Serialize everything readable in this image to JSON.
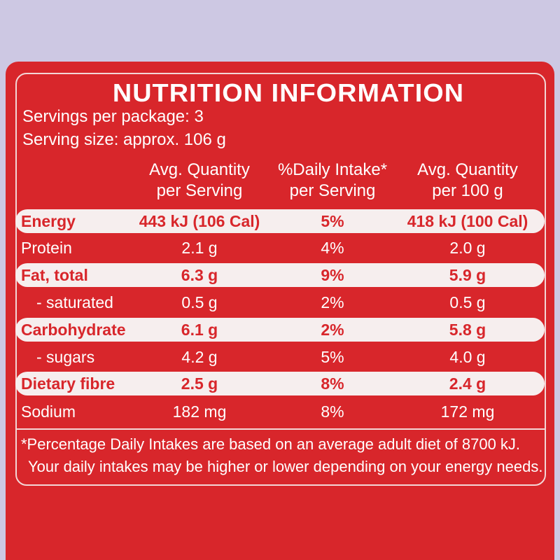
{
  "title": "NUTRITION INFORMATION",
  "servings": [
    "Servings per package: 3",
    "Serving size: approx. 106 g"
  ],
  "header": [
    [
      "Avg. Quantity",
      "per Serving"
    ],
    [
      "%Daily Intake*",
      "per Serving"
    ],
    [
      "Avg. Quantity",
      "per 100 g"
    ]
  ],
  "rows": [
    [
      "Energy",
      "443 kJ (106 Cal)",
      "5%",
      "418 kJ (100 Cal)"
    ],
    [
      "Protein",
      "2.1 g",
      "4%",
      "2.0 g"
    ],
    [
      "Fat, total",
      "6.3 g",
      "9%",
      "5.9 g"
    ],
    [
      "- saturated",
      "0.5 g",
      "2%",
      "0.5 g"
    ],
    [
      "Carbohydrate",
      "6.1 g",
      "2%",
      "5.8 g"
    ],
    [
      "- sugars",
      "4.2 g",
      "5%",
      "4.0 g"
    ],
    [
      "Dietary fibre",
      "2.5 g",
      "8%",
      "2.4 g"
    ],
    [
      "Sodium",
      "182 mg",
      "8%",
      "172 mg"
    ]
  ],
  "footnote": [
    "*Percentage Daily Intakes are based on an average adult diet of 8700 kJ.",
    "Your daily intakes may be higher or lower depending on your energy needs."
  ]
}
